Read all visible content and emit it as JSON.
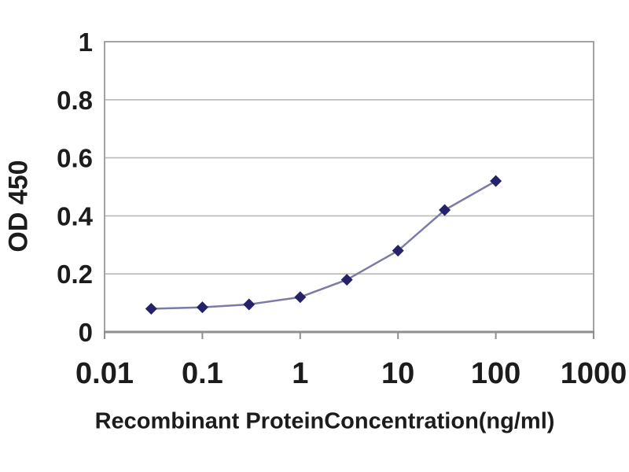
{
  "canvas": {
    "background": "#ffffff"
  },
  "chart_data": {
    "type": "line",
    "title": "",
    "xlabel": "Recombinant ProteinConcentration(ng/ml)",
    "ylabel": "OD 450",
    "x_scale": "log",
    "xlim": [
      0.01,
      1000
    ],
    "ylim": [
      0,
      1
    ],
    "x_ticks": [
      "0.01",
      "0.1",
      "1",
      "10",
      "100",
      "1000"
    ],
    "y_ticks": [
      "1",
      "0.8",
      "0.6",
      "0.4",
      "0.2",
      "0"
    ],
    "grid": "horizontal-only",
    "legend": "none",
    "marker": "diamond",
    "series": [
      {
        "name": "OD 450 vs concentration",
        "x": [
          0.03,
          0.1,
          0.3,
          1,
          3,
          10,
          30,
          100
        ],
        "y": [
          0.08,
          0.085,
          0.095,
          0.12,
          0.18,
          0.28,
          0.42,
          0.52
        ]
      }
    ],
    "colors": {
      "marker": "#262269",
      "line": "#7b7ba6",
      "grid": "#b9b9b9",
      "plot_border": "#a3a3a3",
      "axis": "#8f8f8f",
      "text": "#1c1c1c"
    }
  }
}
